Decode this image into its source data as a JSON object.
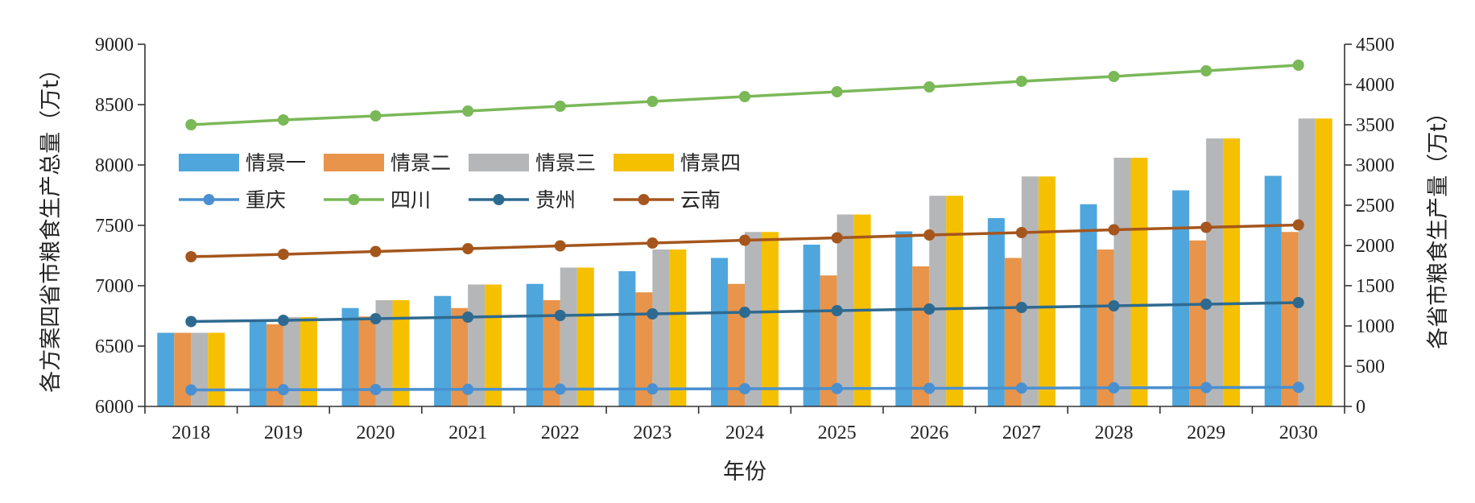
{
  "chart_data": {
    "type": "bar+line",
    "categories": [
      "2018",
      "2019",
      "2020",
      "2021",
      "2022",
      "2023",
      "2024",
      "2025",
      "2026",
      "2027",
      "2028",
      "2029",
      "2030"
    ],
    "xlabel": "年份",
    "ylabel_left": "各方案四省市粮食生产总量（万t）",
    "ylabel_right": "各省市粮食生产量（万t）",
    "ylim_left": [
      6000,
      9000
    ],
    "yticks_left": [
      6000,
      6500,
      7000,
      7500,
      8000,
      8500,
      9000
    ],
    "ylim_right": [
      0,
      4500
    ],
    "yticks_right": [
      0,
      500,
      1000,
      1500,
      2000,
      2500,
      3000,
      3500,
      4000,
      4500
    ],
    "bar_series": [
      {
        "name": "情景一",
        "color": "#4ea6dc",
        "values": [
          6610,
          6710,
          6815,
          6915,
          7015,
          7120,
          7230,
          7340,
          7450,
          7560,
          7675,
          7790,
          7910
        ]
      },
      {
        "name": "情景二",
        "color": "#e8944a",
        "values": [
          6610,
          6680,
          6745,
          6815,
          6880,
          6945,
          7015,
          7085,
          7160,
          7230,
          7300,
          7375,
          7445
        ]
      },
      {
        "name": "情景三",
        "color": "#b5b6b8",
        "values": [
          6610,
          6740,
          6880,
          7010,
          7150,
          7300,
          7445,
          7590,
          7745,
          7905,
          8060,
          8220,
          8385
        ]
      },
      {
        "name": "情景四",
        "color": "#f5c000",
        "values": [
          6610,
          6740,
          6880,
          7010,
          7150,
          7300,
          7445,
          7590,
          7745,
          7905,
          8060,
          8220,
          8385
        ]
      }
    ],
    "line_series": [
      {
        "name": "重庆",
        "color": "#4a90d0",
        "values": [
          205,
          207,
          210,
          212,
          215,
          217,
          220,
          222,
          225,
          228,
          231,
          234,
          237
        ]
      },
      {
        "name": "四川",
        "color": "#7ab858",
        "values": [
          3500,
          3560,
          3610,
          3670,
          3730,
          3790,
          3850,
          3910,
          3970,
          4040,
          4100,
          4170,
          4240
        ]
      },
      {
        "name": "贵州",
        "color": "#2e6a90",
        "values": [
          1055,
          1070,
          1090,
          1110,
          1130,
          1150,
          1170,
          1190,
          1210,
          1230,
          1250,
          1270,
          1290
        ]
      },
      {
        "name": "云南",
        "color": "#a5561d",
        "values": [
          1860,
          1890,
          1925,
          1960,
          1995,
          2030,
          2065,
          2095,
          2130,
          2160,
          2195,
          2225,
          2255
        ]
      }
    ],
    "legend": {
      "placement": "upper-left inside plot",
      "bar_entries": [
        "情景一",
        "情景二",
        "情景三",
        "情景四"
      ],
      "line_entries": [
        "重庆",
        "四川",
        "贵州",
        "云南"
      ]
    },
    "grid": false
  }
}
